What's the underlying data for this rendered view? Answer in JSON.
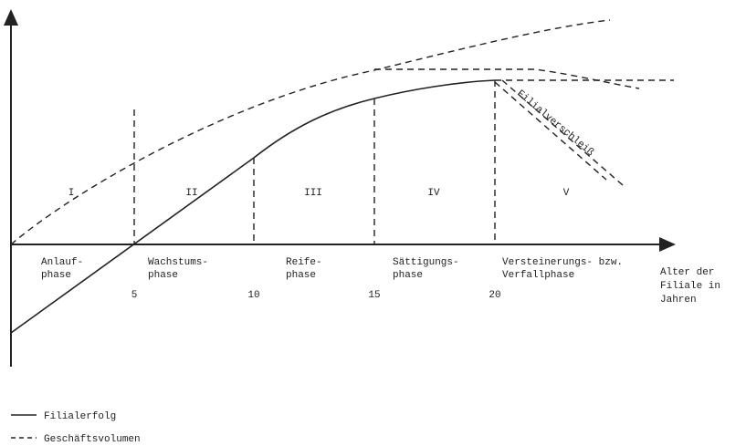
{
  "phases": [
    {
      "numeral": "I",
      "label": [
        "Anlauf-",
        "phase"
      ]
    },
    {
      "numeral": "II",
      "label": [
        "Wachstums-",
        "phase"
      ]
    },
    {
      "numeral": "III",
      "label": [
        "Reife-",
        "phase"
      ]
    },
    {
      "numeral": "IV",
      "label": [
        "Sättigungs-",
        "phase"
      ]
    },
    {
      "numeral": "V",
      "label": [
        "Versteinerungs- bzw.",
        "Verfallphase"
      ]
    }
  ],
  "x_ticks": [
    5,
    10,
    15,
    20
  ],
  "x_axis_label": [
    "Alter der",
    "Filiale in",
    "Jahren"
  ],
  "annotation": "Filialverschleiß",
  "legend": [
    "Filialerfolg",
    "Geschäftsvolumen"
  ]
}
